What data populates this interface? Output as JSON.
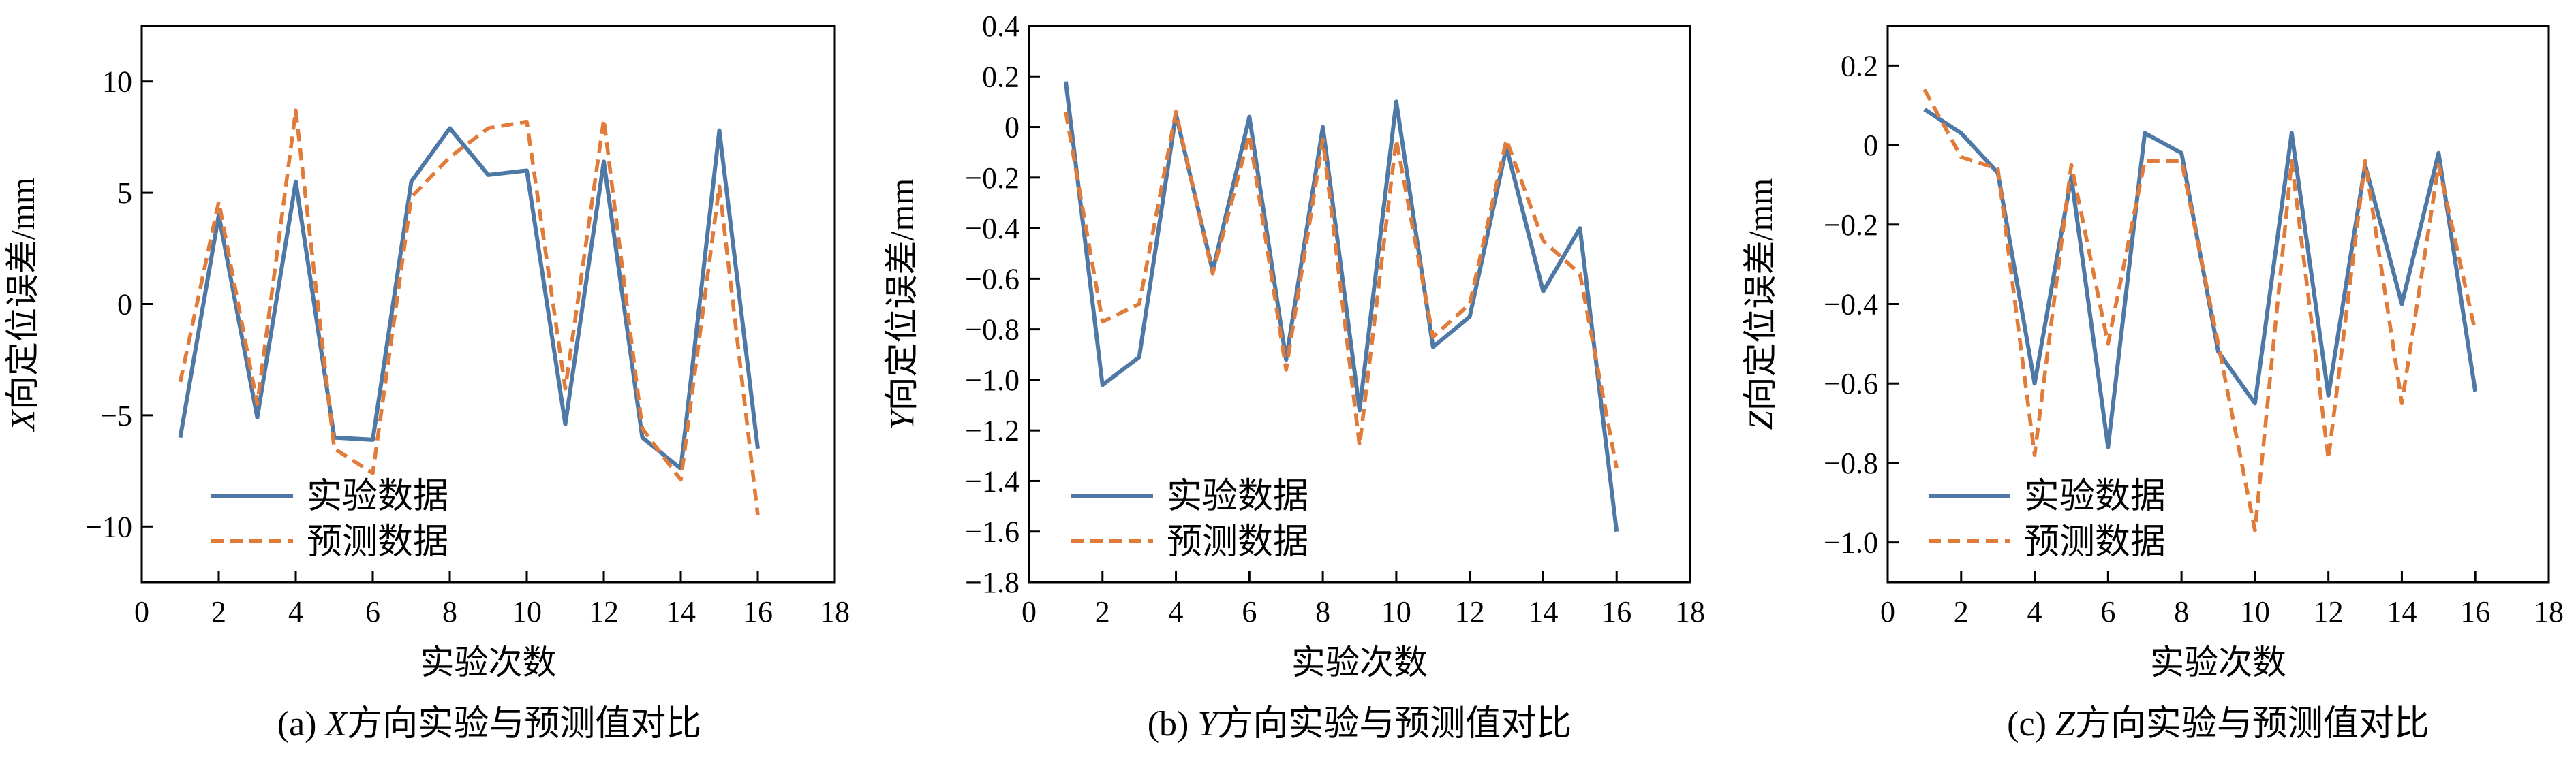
{
  "colors": {
    "experiment": "#4e79a7",
    "prediction": "#e07b39"
  },
  "chart_data": [
    {
      "type": "line",
      "caption_prefix": "(a) ",
      "caption_var": "X",
      "caption_suffix": "方向实验与预测值对比",
      "ylabel_var": "X",
      "ylabel_rest": "向定位误差/mm",
      "xlabel": "实验次数",
      "xlim": [
        0,
        18
      ],
      "ylim": [
        -12.5,
        12.5
      ],
      "xticks": [
        0,
        2,
        4,
        6,
        8,
        10,
        12,
        14,
        16,
        18
      ],
      "yticks": [
        -10,
        -5,
        0,
        5,
        10
      ],
      "ytick_labels": [
        "−10",
        "−5",
        "0",
        "5",
        "10"
      ],
      "x": [
        1,
        2,
        3,
        4,
        5,
        6,
        7,
        8,
        9,
        10,
        11,
        12,
        13,
        14,
        15,
        16
      ],
      "series": [
        {
          "name": "实验数据",
          "style": "solid",
          "values": [
            -6.0,
            4.0,
            -5.1,
            5.5,
            -6.0,
            -6.1,
            5.5,
            7.9,
            5.8,
            6.0,
            -5.4,
            6.4,
            -6.0,
            -7.4,
            7.8,
            -6.5
          ]
        },
        {
          "name": "预测数据",
          "style": "dashed",
          "values": [
            -3.5,
            4.6,
            -4.5,
            8.7,
            -6.5,
            -7.6,
            4.8,
            6.6,
            7.9,
            8.2,
            -3.8,
            8.3,
            -5.6,
            -7.9,
            5.3,
            -9.5
          ]
        }
      ],
      "legend": "lower-left"
    },
    {
      "type": "line",
      "caption_prefix": "(b) ",
      "caption_var": "Y",
      "caption_suffix": "方向实验与预测值对比",
      "ylabel_var": "Y",
      "ylabel_rest": "向定位误差/mm",
      "xlabel": "实验次数",
      "xlim": [
        0,
        18
      ],
      "ylim": [
        -1.8,
        0.4
      ],
      "xticks": [
        0,
        2,
        4,
        6,
        8,
        10,
        12,
        14,
        16,
        18
      ],
      "yticks": [
        -1.8,
        -1.6,
        -1.4,
        -1.2,
        -1.0,
        -0.8,
        -0.6,
        -0.4,
        -0.2,
        0,
        0.2,
        0.4
      ],
      "ytick_labels": [
        "−1.8",
        "−1.6",
        "−1.4",
        "−1.2",
        "−1.0",
        "−0.8",
        "−0.6",
        "−0.4",
        "−0.2",
        "0",
        "0.2",
        "0.4"
      ],
      "x": [
        1,
        2,
        3,
        4,
        5,
        6,
        7,
        8,
        9,
        10,
        11,
        12,
        13,
        14,
        15,
        16
      ],
      "series": [
        {
          "name": "实验数据",
          "style": "solid",
          "values": [
            0.18,
            -1.02,
            -0.91,
            0.05,
            -0.57,
            0.04,
            -0.92,
            0.0,
            -1.12,
            0.1,
            -0.87,
            -0.75,
            -0.08,
            -0.65,
            -0.4,
            -1.6
          ]
        },
        {
          "name": "预测数据",
          "style": "dashed",
          "values": [
            0.06,
            -0.77,
            -0.7,
            0.06,
            -0.58,
            -0.03,
            -0.96,
            -0.05,
            -1.26,
            -0.05,
            -0.83,
            -0.7,
            -0.05,
            -0.45,
            -0.58,
            -1.35
          ]
        }
      ],
      "legend": "lower-left"
    },
    {
      "type": "line",
      "caption_prefix": "(c) ",
      "caption_var": "Z",
      "caption_suffix": "方向实验与预测值对比",
      "ylabel_var": "Z",
      "ylabel_rest": "向定位误差/mm",
      "xlabel": "实验次数",
      "xlim": [
        0,
        18
      ],
      "ylim": [
        -1.1,
        0.3
      ],
      "xticks": [
        0,
        2,
        4,
        6,
        8,
        10,
        12,
        14,
        16,
        18
      ],
      "yticks": [
        -1.0,
        -0.8,
        -0.6,
        -0.4,
        -0.2,
        0,
        0.2
      ],
      "ytick_labels": [
        "−1.0",
        "−0.8",
        "−0.6",
        "−0.4",
        "−0.2",
        "0",
        "0.2"
      ],
      "x": [
        1,
        2,
        3,
        4,
        5,
        6,
        7,
        8,
        9,
        10,
        11,
        12,
        13,
        14,
        15,
        16
      ],
      "series": [
        {
          "name": "实验数据",
          "style": "solid",
          "values": [
            0.09,
            0.03,
            -0.07,
            -0.6,
            -0.08,
            -0.76,
            0.03,
            -0.02,
            -0.52,
            -0.65,
            0.03,
            -0.63,
            -0.05,
            -0.4,
            -0.02,
            -0.62
          ]
        },
        {
          "name": "预测数据",
          "style": "dashed",
          "values": [
            0.14,
            -0.03,
            -0.06,
            -0.78,
            -0.05,
            -0.5,
            -0.04,
            -0.04,
            -0.5,
            -0.97,
            -0.04,
            -0.79,
            -0.04,
            -0.65,
            -0.05,
            -0.47
          ]
        }
      ],
      "legend": "lower-left"
    }
  ]
}
